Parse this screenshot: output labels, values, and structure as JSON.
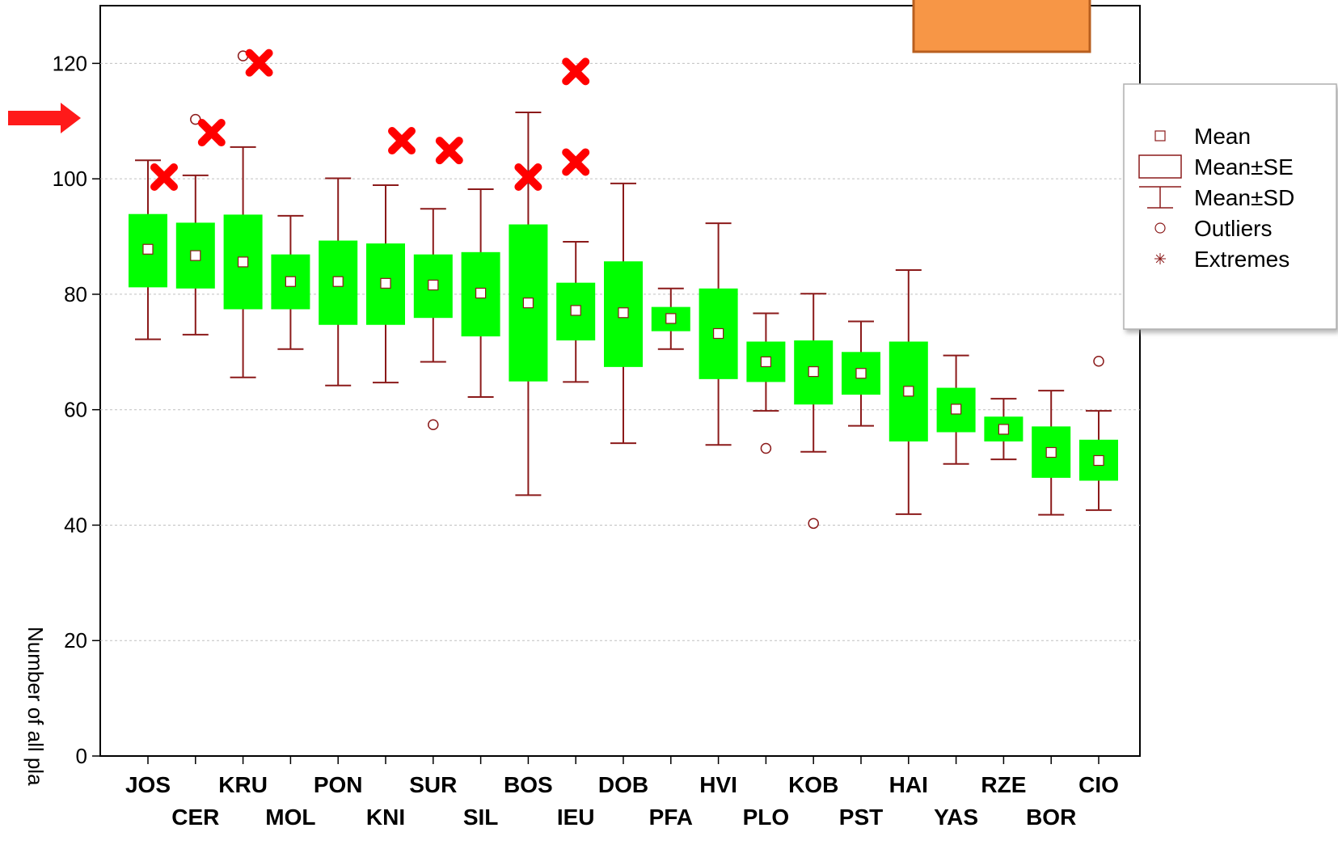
{
  "chart_data": {
    "type": "boxplot",
    "ylabel": "Number of all pla",
    "ylim": [
      0,
      130
    ],
    "yticks": [
      0,
      20,
      40,
      60,
      80,
      100,
      120
    ],
    "grid": true,
    "categories": [
      "JOS",
      "CER",
      "KRU",
      "MOL",
      "PON",
      "KNI",
      "SUR",
      "SIL",
      "BOS",
      "IEU",
      "DOB",
      "PFA",
      "HVI",
      "PLO",
      "KOB",
      "PST",
      "HAI",
      "YAS",
      "RZE",
      "BOR",
      "CIO"
    ],
    "mean": [
      87.8,
      86.7,
      85.6,
      82.2,
      82.2,
      81.9,
      81.6,
      80.2,
      78.5,
      77.2,
      76.8,
      75.8,
      73.2,
      68.3,
      66.6,
      66.3,
      63.2,
      60.1,
      56.6,
      52.6,
      51.2
    ],
    "se_low": [
      81.2,
      81.0,
      77.4,
      77.4,
      74.7,
      74.7,
      75.9,
      72.7,
      64.9,
      72.0,
      67.4,
      73.6,
      65.3,
      64.8,
      60.9,
      62.6,
      54.5,
      56.1,
      54.5,
      48.2,
      47.7
    ],
    "se_high": [
      93.9,
      92.4,
      93.8,
      86.9,
      89.3,
      88.8,
      86.9,
      87.3,
      92.1,
      82.0,
      85.7,
      77.8,
      81.0,
      71.8,
      72.0,
      70.0,
      71.8,
      63.8,
      58.8,
      57.1,
      54.8
    ],
    "sd_low": [
      72.2,
      73.0,
      65.6,
      70.5,
      64.2,
      64.7,
      68.3,
      62.2,
      45.2,
      64.8,
      54.2,
      70.5,
      53.9,
      59.8,
      52.7,
      57.2,
      41.9,
      50.6,
      51.4,
      41.8,
      42.6
    ],
    "sd_high": [
      103.2,
      100.6,
      105.5,
      93.6,
      100.1,
      98.9,
      94.8,
      98.2,
      111.5,
      89.1,
      99.2,
      81.0,
      92.3,
      76.7,
      80.1,
      75.3,
      84.2,
      69.4,
      61.9,
      63.3,
      59.8
    ],
    "outliers": [
      {
        "category": "CER",
        "value": 110.3
      },
      {
        "category": "KRU",
        "value": 121.3
      },
      {
        "category": "SUR",
        "value": 57.4
      },
      {
        "category": "PLO",
        "value": 53.3
      },
      {
        "category": "KOB",
        "value": 40.3
      },
      {
        "category": "CIO",
        "value": 68.4
      }
    ],
    "highlights": [
      {
        "after": "JOS",
        "value": 100.3
      },
      {
        "after": "CER",
        "value": 108.0
      },
      {
        "after": "KRU",
        "value": 120.1
      },
      {
        "after": "KNI",
        "value": 106.6
      },
      {
        "after": "SUR",
        "value": 104.9
      },
      {
        "category": "BOS",
        "value": 100.3
      },
      {
        "category": "IEU",
        "value": 118.6
      },
      {
        "category": "IEU",
        "value": 102.9
      }
    ],
    "arrow_value": 110.0,
    "legend": {
      "placement": "right",
      "items": [
        {
          "symbol": "square",
          "label": "Mean"
        },
        {
          "symbol": "box",
          "label": "Mean±SE"
        },
        {
          "symbol": "whisker",
          "label": "Mean±SD"
        },
        {
          "symbol": "circle",
          "label": "Outliers"
        },
        {
          "symbol": "asterisk",
          "label": "Extremes"
        }
      ]
    },
    "colors": {
      "box": "#00ff00",
      "whisker": "#8b1a1a",
      "highlight": "#ff0000",
      "arrow": "#ff1a1a",
      "orange_box": "#f79646",
      "orange_border": "#b85f1f",
      "grid": "#c0c0c0",
      "axis": "#000000"
    }
  }
}
